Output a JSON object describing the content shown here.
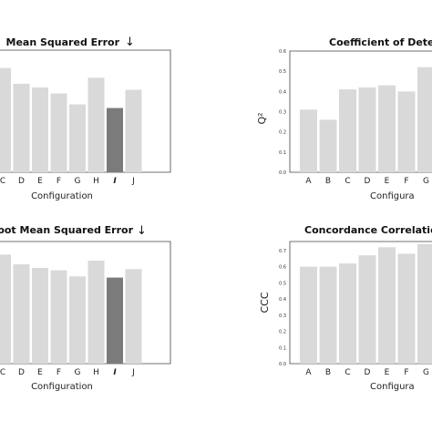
{
  "chart_data": [
    {
      "id": "mse",
      "type": "bar",
      "title": "Mean Squared Error",
      "direction_arrow": "↓",
      "xlabel": "Configuration",
      "ylabel": "",
      "categories": [
        "C",
        "D",
        "E",
        "F",
        "G",
        "H",
        "I",
        "J"
      ],
      "values": [
        0.86,
        0.73,
        0.7,
        0.65,
        0.56,
        0.78,
        0.53,
        0.68
      ],
      "highlight": "I",
      "ylim": [
        0,
        1.0
      ],
      "yticks": [],
      "grid": false,
      "colors": {
        "bar": "#d9d9d9",
        "highlight": "#7b7b7b"
      }
    },
    {
      "id": "q2",
      "type": "bar",
      "title": "Coefficient of Deter",
      "xlabel": "Configura",
      "ylabel": "Q²",
      "categories": [
        "A",
        "B",
        "C",
        "D",
        "E",
        "F",
        "G"
      ],
      "values": [
        0.31,
        0.26,
        0.41,
        0.42,
        0.43,
        0.4,
        0.52
      ],
      "ylim": [
        0,
        0.6
      ],
      "yticks": [
        0,
        0.1,
        0.2,
        0.3,
        0.4,
        0.5,
        0.6
      ],
      "ytick_labels": [
        "0.0",
        "0.1",
        "0.2",
        "0.3",
        "0.4",
        "0.5",
        "0.6"
      ],
      "grid": false,
      "colors": {
        "bar": "#d9d9d9"
      }
    },
    {
      "id": "rmse",
      "type": "bar",
      "title": "Root Mean Squared Error",
      "direction_arrow": "↓",
      "xlabel": "Configuration",
      "ylabel": "",
      "categories": [
        "C",
        "D",
        "E",
        "F",
        "G",
        "H",
        "I",
        "J"
      ],
      "values": [
        0.9,
        0.82,
        0.79,
        0.77,
        0.72,
        0.85,
        0.71,
        0.78
      ],
      "highlight": "I",
      "ylim": [
        0,
        1.0
      ],
      "yticks": [],
      "grid": false,
      "colors": {
        "bar": "#d9d9d9",
        "highlight": "#7b7b7b"
      }
    },
    {
      "id": "ccc",
      "type": "bar",
      "title": "Concordance Correlation",
      "xlabel": "Configura",
      "ylabel": "CCC",
      "categories": [
        "A",
        "B",
        "C",
        "D",
        "E",
        "F",
        "G"
      ],
      "values": [
        0.6,
        0.6,
        0.62,
        0.67,
        0.72,
        0.68,
        0.74
      ],
      "ylim": [
        0,
        0.75
      ],
      "yticks": [
        0,
        0.1,
        0.2,
        0.3,
        0.4,
        0.5,
        0.6,
        0.7
      ],
      "ytick_labels": [
        "0.0",
        "0.1",
        "0.2",
        "0.3",
        "0.4",
        "0.5",
        "0.6",
        "0.7"
      ],
      "grid": false,
      "colors": {
        "bar": "#d9d9d9"
      }
    }
  ]
}
